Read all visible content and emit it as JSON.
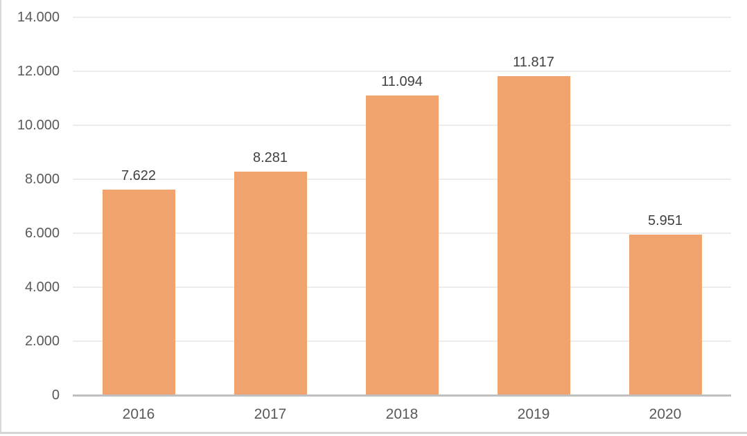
{
  "chart_data": {
    "type": "bar",
    "title": "",
    "xlabel": "",
    "ylabel": "",
    "categories": [
      "2016",
      "2017",
      "2018",
      "2019",
      "2020"
    ],
    "values": [
      7622,
      8281,
      11094,
      11817,
      5951
    ],
    "value_labels": [
      "7.622",
      "8.281",
      "11.094",
      "11.817",
      "5.951"
    ],
    "series_name": "",
    "legend": false,
    "grid": true,
    "ylim": [
      0,
      14000
    ],
    "y_tick_values": [
      14000,
      12000,
      10000,
      8000,
      6000,
      4000,
      2000,
      0
    ],
    "y_tick_labels": [
      "14.000",
      "12.000",
      "10.000",
      "8.000",
      "6.000",
      "4.000",
      "2.000",
      "0"
    ],
    "colors": {
      "bar_fill": "#F0A36C",
      "gridline": "#ECECEC",
      "axis_line": "#BFBFBF",
      "axis_tick_text": "#595959",
      "data_label_text": "#404040",
      "background": "#FFFFFF",
      "frame_border": "#D9D9D9"
    }
  }
}
